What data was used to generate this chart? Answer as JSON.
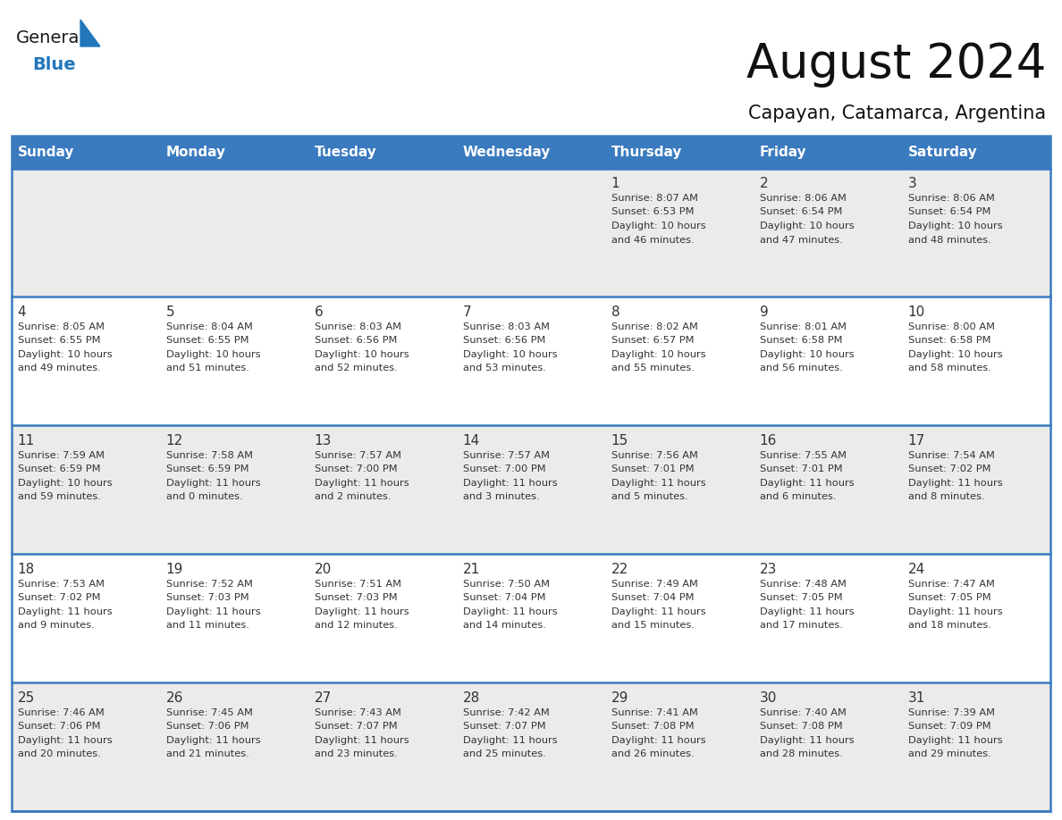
{
  "title": "August 2024",
  "subtitle": "Capayan, Catamarca, Argentina",
  "header_bg_color": "#3a7abf",
  "header_text_color": "#ffffff",
  "row_bg_even": "#ebebeb",
  "row_bg_odd": "#ffffff",
  "cell_text_color": "#333333",
  "separator_color": "#3a7abf",
  "day_names": [
    "Sunday",
    "Monday",
    "Tuesday",
    "Wednesday",
    "Thursday",
    "Friday",
    "Saturday"
  ],
  "logo_text1": "General",
  "logo_text2": "Blue",
  "logo_triangle_color": "#2277bb",
  "calendar_data": [
    [
      null,
      null,
      null,
      null,
      {
        "day": 1,
        "sunrise": "8:07 AM",
        "sunset": "6:53 PM",
        "daylight_line1": "Daylight: 10 hours",
        "daylight_line2": "and 46 minutes."
      },
      {
        "day": 2,
        "sunrise": "8:06 AM",
        "sunset": "6:54 PM",
        "daylight_line1": "Daylight: 10 hours",
        "daylight_line2": "and 47 minutes."
      },
      {
        "day": 3,
        "sunrise": "8:06 AM",
        "sunset": "6:54 PM",
        "daylight_line1": "Daylight: 10 hours",
        "daylight_line2": "and 48 minutes."
      }
    ],
    [
      {
        "day": 4,
        "sunrise": "8:05 AM",
        "sunset": "6:55 PM",
        "daylight_line1": "Daylight: 10 hours",
        "daylight_line2": "and 49 minutes."
      },
      {
        "day": 5,
        "sunrise": "8:04 AM",
        "sunset": "6:55 PM",
        "daylight_line1": "Daylight: 10 hours",
        "daylight_line2": "and 51 minutes."
      },
      {
        "day": 6,
        "sunrise": "8:03 AM",
        "sunset": "6:56 PM",
        "daylight_line1": "Daylight: 10 hours",
        "daylight_line2": "and 52 minutes."
      },
      {
        "day": 7,
        "sunrise": "8:03 AM",
        "sunset": "6:56 PM",
        "daylight_line1": "Daylight: 10 hours",
        "daylight_line2": "and 53 minutes."
      },
      {
        "day": 8,
        "sunrise": "8:02 AM",
        "sunset": "6:57 PM",
        "daylight_line1": "Daylight: 10 hours",
        "daylight_line2": "and 55 minutes."
      },
      {
        "day": 9,
        "sunrise": "8:01 AM",
        "sunset": "6:58 PM",
        "daylight_line1": "Daylight: 10 hours",
        "daylight_line2": "and 56 minutes."
      },
      {
        "day": 10,
        "sunrise": "8:00 AM",
        "sunset": "6:58 PM",
        "daylight_line1": "Daylight: 10 hours",
        "daylight_line2": "and 58 minutes."
      }
    ],
    [
      {
        "day": 11,
        "sunrise": "7:59 AM",
        "sunset": "6:59 PM",
        "daylight_line1": "Daylight: 10 hours",
        "daylight_line2": "and 59 minutes."
      },
      {
        "day": 12,
        "sunrise": "7:58 AM",
        "sunset": "6:59 PM",
        "daylight_line1": "Daylight: 11 hours",
        "daylight_line2": "and 0 minutes."
      },
      {
        "day": 13,
        "sunrise": "7:57 AM",
        "sunset": "7:00 PM",
        "daylight_line1": "Daylight: 11 hours",
        "daylight_line2": "and 2 minutes."
      },
      {
        "day": 14,
        "sunrise": "7:57 AM",
        "sunset": "7:00 PM",
        "daylight_line1": "Daylight: 11 hours",
        "daylight_line2": "and 3 minutes."
      },
      {
        "day": 15,
        "sunrise": "7:56 AM",
        "sunset": "7:01 PM",
        "daylight_line1": "Daylight: 11 hours",
        "daylight_line2": "and 5 minutes."
      },
      {
        "day": 16,
        "sunrise": "7:55 AM",
        "sunset": "7:01 PM",
        "daylight_line1": "Daylight: 11 hours",
        "daylight_line2": "and 6 minutes."
      },
      {
        "day": 17,
        "sunrise": "7:54 AM",
        "sunset": "7:02 PM",
        "daylight_line1": "Daylight: 11 hours",
        "daylight_line2": "and 8 minutes."
      }
    ],
    [
      {
        "day": 18,
        "sunrise": "7:53 AM",
        "sunset": "7:02 PM",
        "daylight_line1": "Daylight: 11 hours",
        "daylight_line2": "and 9 minutes."
      },
      {
        "day": 19,
        "sunrise": "7:52 AM",
        "sunset": "7:03 PM",
        "daylight_line1": "Daylight: 11 hours",
        "daylight_line2": "and 11 minutes."
      },
      {
        "day": 20,
        "sunrise": "7:51 AM",
        "sunset": "7:03 PM",
        "daylight_line1": "Daylight: 11 hours",
        "daylight_line2": "and 12 minutes."
      },
      {
        "day": 21,
        "sunrise": "7:50 AM",
        "sunset": "7:04 PM",
        "daylight_line1": "Daylight: 11 hours",
        "daylight_line2": "and 14 minutes."
      },
      {
        "day": 22,
        "sunrise": "7:49 AM",
        "sunset": "7:04 PM",
        "daylight_line1": "Daylight: 11 hours",
        "daylight_line2": "and 15 minutes."
      },
      {
        "day": 23,
        "sunrise": "7:48 AM",
        "sunset": "7:05 PM",
        "daylight_line1": "Daylight: 11 hours",
        "daylight_line2": "and 17 minutes."
      },
      {
        "day": 24,
        "sunrise": "7:47 AM",
        "sunset": "7:05 PM",
        "daylight_line1": "Daylight: 11 hours",
        "daylight_line2": "and 18 minutes."
      }
    ],
    [
      {
        "day": 25,
        "sunrise": "7:46 AM",
        "sunset": "7:06 PM",
        "daylight_line1": "Daylight: 11 hours",
        "daylight_line2": "and 20 minutes."
      },
      {
        "day": 26,
        "sunrise": "7:45 AM",
        "sunset": "7:06 PM",
        "daylight_line1": "Daylight: 11 hours",
        "daylight_line2": "and 21 minutes."
      },
      {
        "day": 27,
        "sunrise": "7:43 AM",
        "sunset": "7:07 PM",
        "daylight_line1": "Daylight: 11 hours",
        "daylight_line2": "and 23 minutes."
      },
      {
        "day": 28,
        "sunrise": "7:42 AM",
        "sunset": "7:07 PM",
        "daylight_line1": "Daylight: 11 hours",
        "daylight_line2": "and 25 minutes."
      },
      {
        "day": 29,
        "sunrise": "7:41 AM",
        "sunset": "7:08 PM",
        "daylight_line1": "Daylight: 11 hours",
        "daylight_line2": "and 26 minutes."
      },
      {
        "day": 30,
        "sunrise": "7:40 AM",
        "sunset": "7:08 PM",
        "daylight_line1": "Daylight: 11 hours",
        "daylight_line2": "and 28 minutes."
      },
      {
        "day": 31,
        "sunrise": "7:39 AM",
        "sunset": "7:09 PM",
        "daylight_line1": "Daylight: 11 hours",
        "daylight_line2": "and 29 minutes."
      }
    ]
  ]
}
